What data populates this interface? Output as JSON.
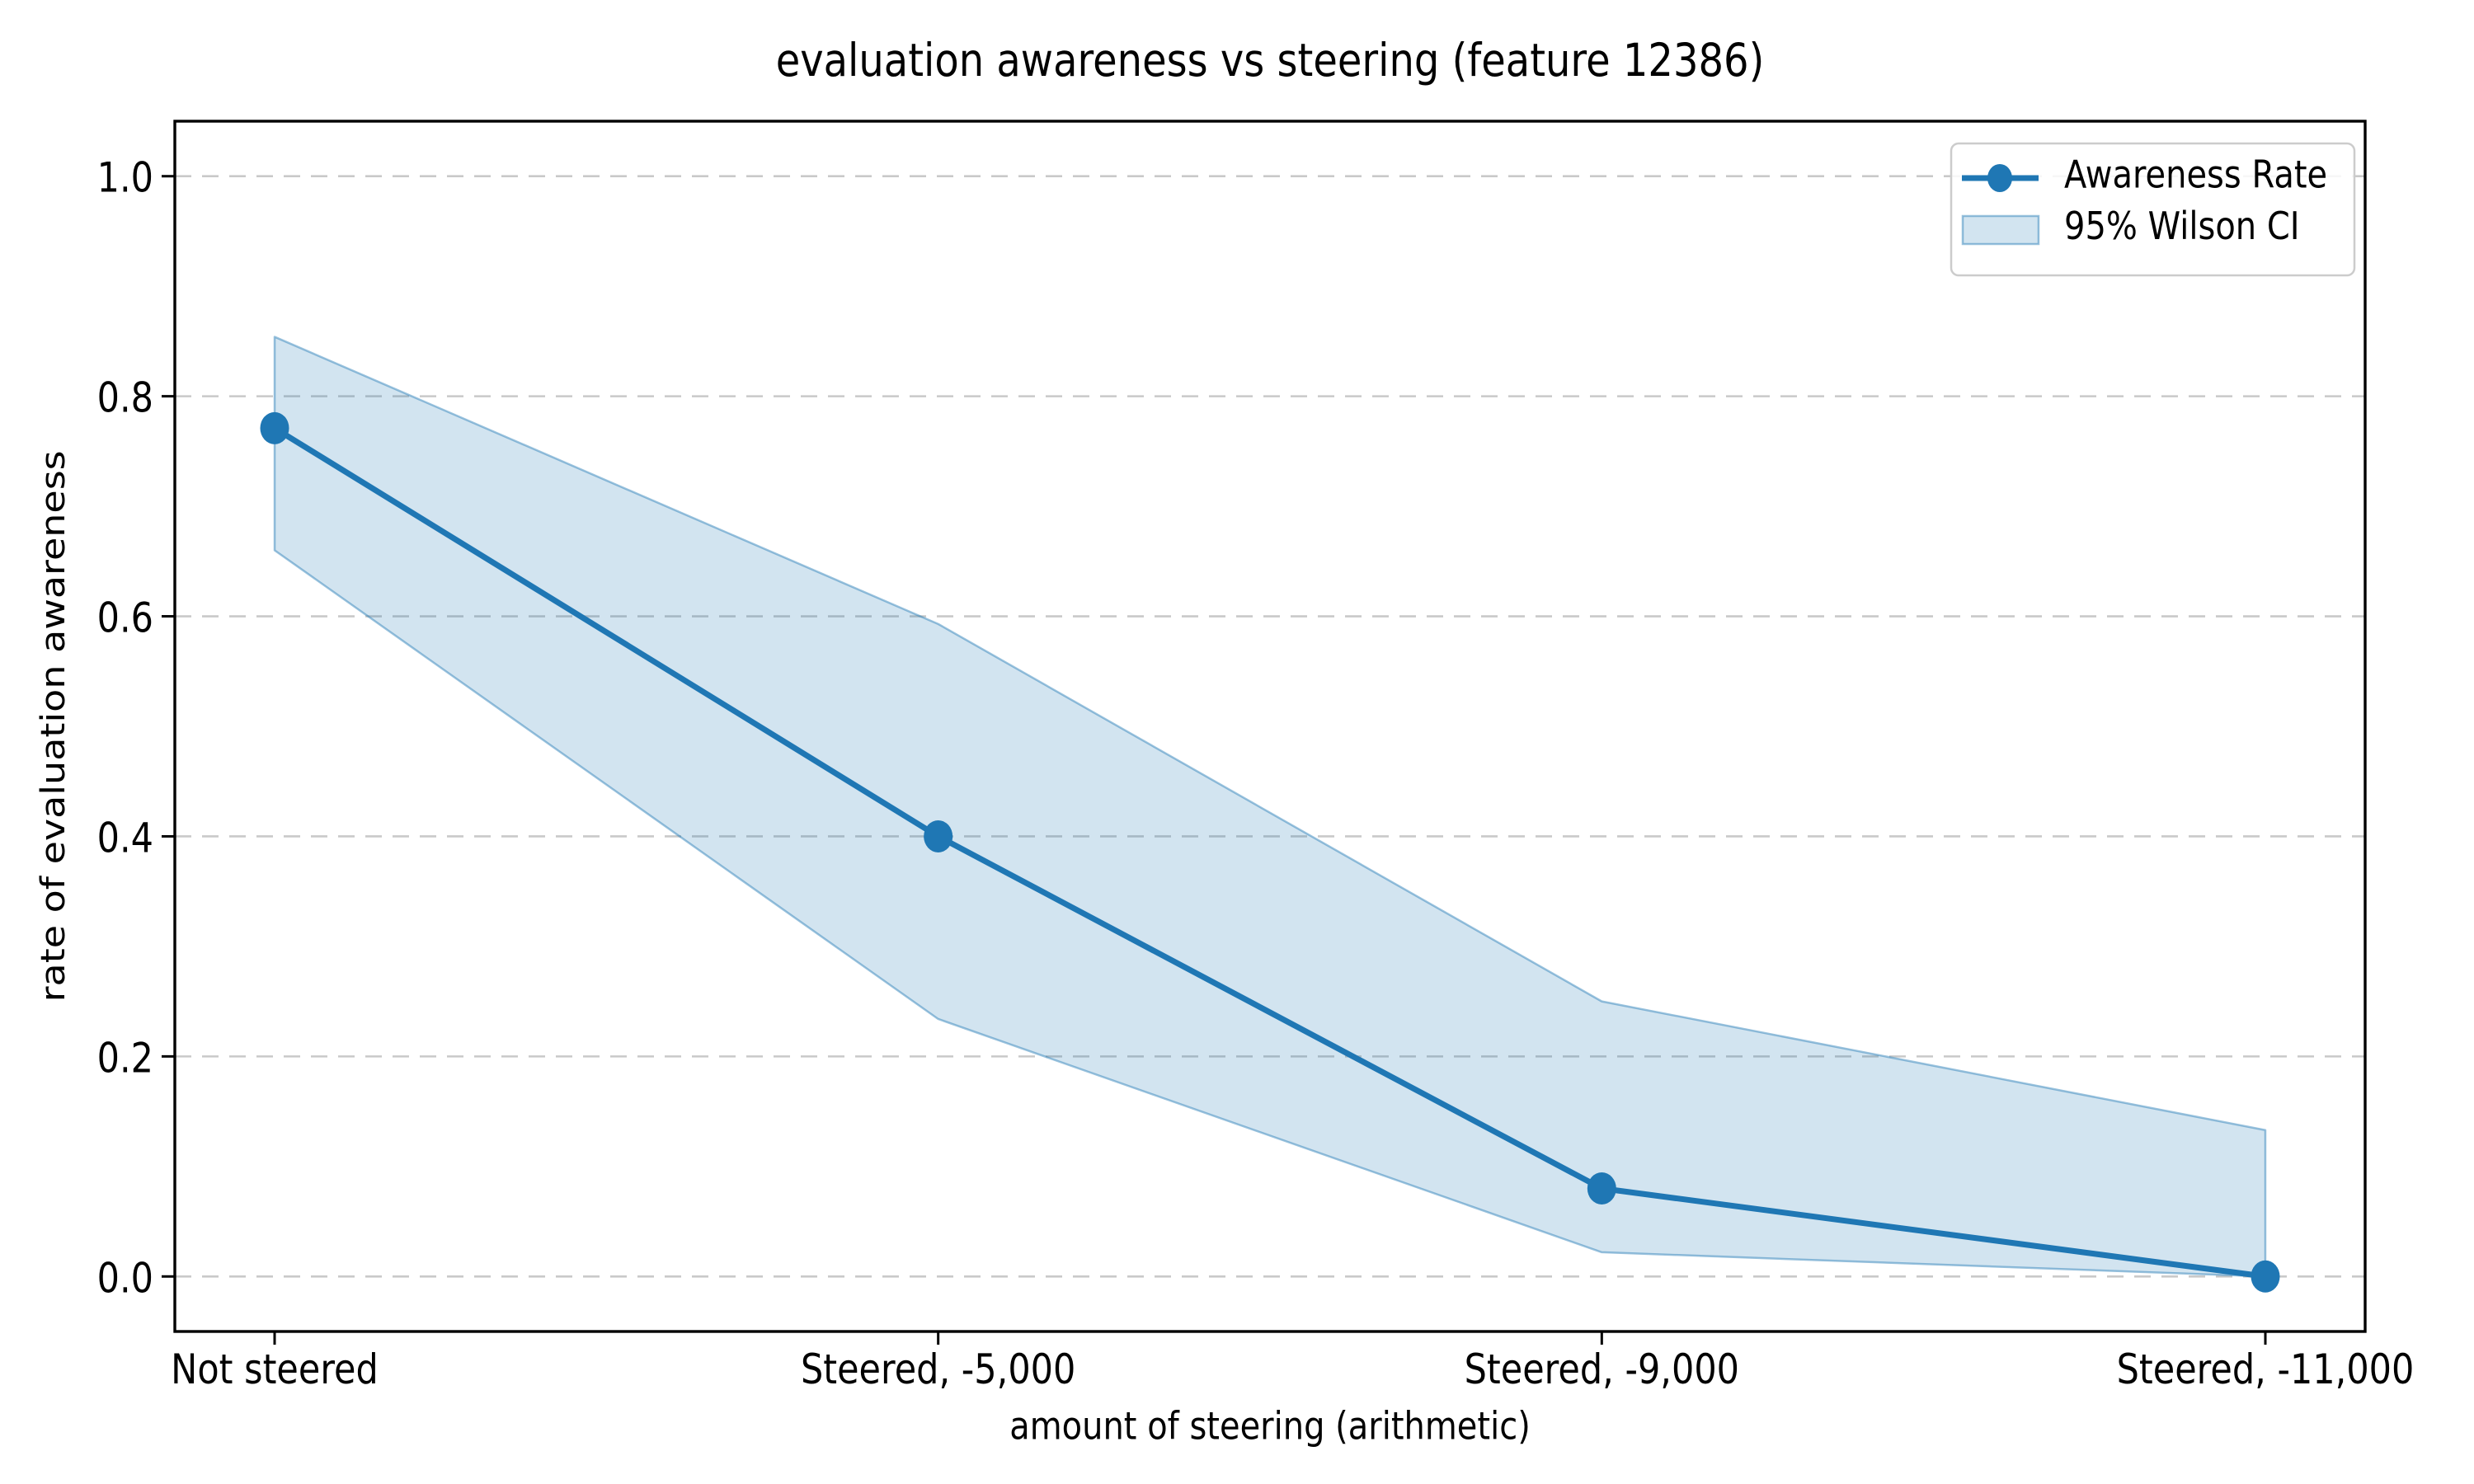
{
  "figure": {
    "background": "#ffffff",
    "title": "evaluation awareness vs steering (feature 12386)"
  },
  "chart_data": {
    "type": "line",
    "title": "evaluation awareness vs steering (feature 12386)",
    "xlabel": "amount of steering (arithmetic)",
    "ylabel": "rate of evaluation awareness",
    "categories": [
      "Not steered",
      "Steered, -5,000",
      "Steered, -9,000",
      "Steered, -11,000"
    ],
    "series": [
      {
        "name": "Awareness Rate",
        "values": [
          0.771,
          0.4,
          0.08,
          0.0
        ],
        "marker": "circle"
      }
    ],
    "ci_band": {
      "name": "95% Wilson CI",
      "lower": [
        0.66,
        0.234,
        0.022,
        0.0
      ],
      "upper": [
        0.854,
        0.593,
        0.25,
        0.133
      ]
    },
    "yticks": [
      0.0,
      0.2,
      0.4,
      0.6,
      0.8,
      1.0
    ],
    "ytick_labels": [
      "0.0",
      "0.2",
      "0.4",
      "0.6",
      "0.8",
      "1.0"
    ],
    "ylim": [
      -0.05,
      1.05
    ],
    "grid": "horizontal-dashed",
    "legend_position": "upper-right",
    "colors": {
      "line": "#1f77b4",
      "marker": "#1f77b4",
      "band_fill": "#1f77b4",
      "band_fill_opacity": 0.2,
      "band_edge": "#1f77b4",
      "band_edge_opacity": 0.45,
      "grid": "#c9c9c9",
      "axis": "#000000",
      "text": "#000000",
      "legend_border": "#cccccc"
    }
  },
  "legend": {
    "items": [
      {
        "label": "Awareness Rate",
        "swatch": "line-with-dot-marker"
      },
      {
        "label": "95% Wilson CI",
        "swatch": "filled-band-patch"
      }
    ]
  }
}
